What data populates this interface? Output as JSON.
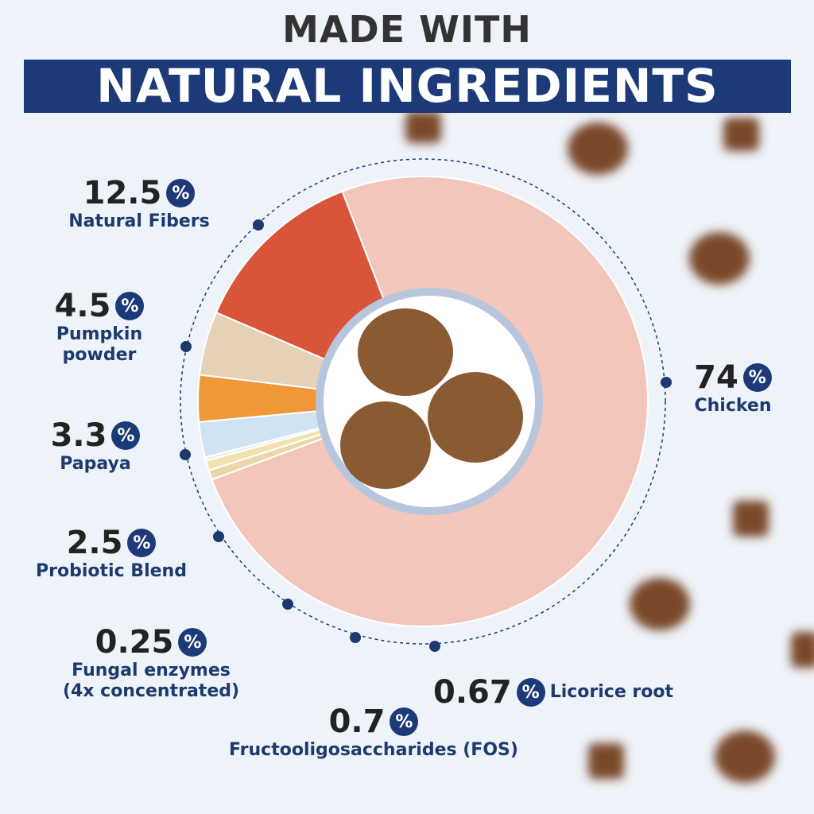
{
  "chart_data": {
    "type": "pie",
    "title": "MADE WITH",
    "subtitle": "NATURAL INGREDIENTS",
    "categories": [
      "Chicken",
      "Licorice root",
      "Fructooligosaccharides (FOS)",
      "Fungal enzymes\n(4x concentrated)",
      "Probiotic Blend",
      "Papaya",
      "Pumpkin\npowder",
      "Natural Fibers"
    ],
    "values": [
      74,
      0.67,
      0.7,
      0.25,
      2.5,
      3.3,
      4.5,
      12.5
    ],
    "colors": [
      "#f3c6bb",
      "#ead8a8",
      "#f2e2b0",
      "#e3ecf3",
      "#cfe3f2",
      "#f0973a",
      "#e5d1b5",
      "#d9553a"
    ],
    "percent_sign": "%"
  }
}
